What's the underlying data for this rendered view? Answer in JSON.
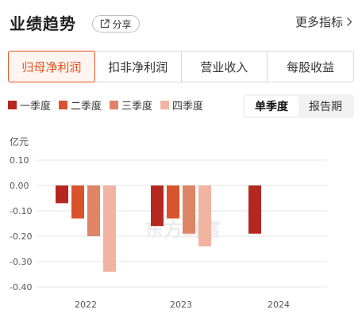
{
  "header": {
    "title": "业绩趋势",
    "share_label": "分享",
    "more_label": "更多指标"
  },
  "tabs": [
    {
      "label": "归母净利润",
      "active": true
    },
    {
      "label": "扣非净利润",
      "active": false
    },
    {
      "label": "营业收入",
      "active": false
    },
    {
      "label": "每股收益",
      "active": false
    }
  ],
  "period_toggle": {
    "single_quarter": "单季度",
    "report_period": "报告期",
    "selected": "单季度"
  },
  "watermark": "东方财富",
  "chart_data": {
    "type": "bar",
    "title": "",
    "xlabel": "",
    "ylabel": "亿元",
    "ylim": [
      -0.4,
      0.1
    ],
    "yticks": [
      0.1,
      0.0,
      -0.1,
      -0.2,
      -0.3,
      -0.4
    ],
    "ytick_labels": [
      "0.10",
      "0.00",
      "-0.10",
      "-0.20",
      "-0.30",
      "-0.40"
    ],
    "grid": true,
    "legend_position": "top-left",
    "categories": [
      "2022",
      "2023",
      "2024"
    ],
    "series": [
      {
        "name": "一季度",
        "color": "#b5281f",
        "values": [
          -0.07,
          -0.16,
          -0.19
        ]
      },
      {
        "name": "二季度",
        "color": "#d9532c",
        "values": [
          -0.13,
          -0.13,
          null
        ]
      },
      {
        "name": "三季度",
        "color": "#e08466",
        "values": [
          -0.2,
          -0.19,
          null
        ]
      },
      {
        "name": "四季度",
        "color": "#f0b4a0",
        "values": [
          -0.34,
          -0.24,
          null
        ]
      }
    ]
  }
}
